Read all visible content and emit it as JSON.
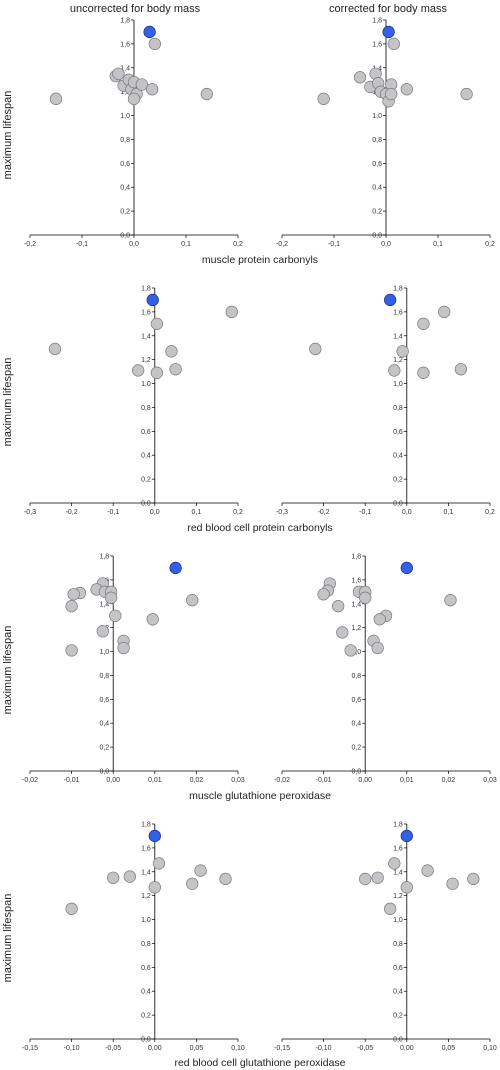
{
  "column_titles": [
    "uncorrected for body mass",
    "corrected for body mass"
  ],
  "row_ylabel": "maximum lifespan",
  "row_xlabels": [
    "muscle protein carbonyls",
    "red blood cell protein carbonyls",
    "muscle glutathione peroxidase",
    "red blood cell glutathione peroxidase"
  ],
  "colors": {
    "point_fill": "#c4c4c8",
    "point_stroke": "#777777",
    "highlight_fill": "#3460e8",
    "highlight_stroke": "#1a2a80"
  },
  "chart_data": [
    {
      "type": "scatter",
      "panel": "row1-uncorrected",
      "xlabel": "muscle protein carbonyls",
      "ylabel": "maximum lifespan",
      "xlim": [
        -0.2,
        0.2
      ],
      "ylim": [
        0,
        1.8
      ],
      "xticks": [
        -0.2,
        -0.1,
        0,
        0.1,
        0.2
      ],
      "xtick_labels": [
        "-0,2",
        "-0,1",
        "0,0",
        "0,1",
        "0,2"
      ],
      "yticks": [
        0,
        0.2,
        0.4,
        0.6,
        0.8,
        1.0,
        1.2,
        1.4,
        1.6,
        1.8
      ],
      "ytick_labels": [
        "0,0",
        "0,2",
        "0,4",
        "0,6",
        "0,8",
        "1,0",
        "1,2",
        "1,4",
        "1,6",
        "1,8"
      ],
      "points": [
        {
          "x": 0.03,
          "y": 1.7,
          "highlight": true
        },
        {
          "x": 0.04,
          "y": 1.6
        },
        {
          "x": -0.15,
          "y": 1.14
        },
        {
          "x": -0.035,
          "y": 1.33
        },
        {
          "x": -0.03,
          "y": 1.35
        },
        {
          "x": -0.02,
          "y": 1.25
        },
        {
          "x": -0.01,
          "y": 1.3
        },
        {
          "x": -0.005,
          "y": 1.22
        },
        {
          "x": 0.0,
          "y": 1.28
        },
        {
          "x": 0.005,
          "y": 1.18
        },
        {
          "x": 0.0,
          "y": 1.14
        },
        {
          "x": 0.015,
          "y": 1.26
        },
        {
          "x": 0.035,
          "y": 1.22
        },
        {
          "x": 0.14,
          "y": 1.18
        }
      ]
    },
    {
      "type": "scatter",
      "panel": "row1-corrected",
      "xlabel": "muscle protein carbonyls",
      "ylabel": "maximum lifespan",
      "xlim": [
        -0.2,
        0.2
      ],
      "ylim": [
        0,
        1.8
      ],
      "xticks": [
        -0.2,
        -0.1,
        0,
        0.1,
        0.2
      ],
      "xtick_labels": [
        "-0,2",
        "-0,1",
        "0,0",
        "0,1",
        "0,2"
      ],
      "yticks": [
        0,
        0.2,
        0.4,
        0.6,
        0.8,
        1.0,
        1.2,
        1.4,
        1.6,
        1.8
      ],
      "ytick_labels": [
        "0,0",
        "0,2",
        "0,4",
        "0,6",
        "0,8",
        "1,0",
        "1,2",
        "1,4",
        "1,6",
        "1,8"
      ],
      "points": [
        {
          "x": 0.005,
          "y": 1.7,
          "highlight": true
        },
        {
          "x": 0.015,
          "y": 1.6
        },
        {
          "x": -0.12,
          "y": 1.14
        },
        {
          "x": -0.05,
          "y": 1.32
        },
        {
          "x": -0.03,
          "y": 1.24
        },
        {
          "x": -0.02,
          "y": 1.35
        },
        {
          "x": -0.015,
          "y": 1.27
        },
        {
          "x": -0.01,
          "y": 1.2
        },
        {
          "x": 0.0,
          "y": 1.18
        },
        {
          "x": 0.005,
          "y": 1.12
        },
        {
          "x": 0.01,
          "y": 1.26
        },
        {
          "x": 0.01,
          "y": 1.18
        },
        {
          "x": 0.04,
          "y": 1.22
        },
        {
          "x": 0.155,
          "y": 1.18
        }
      ]
    },
    {
      "type": "scatter",
      "panel": "row2-uncorrected",
      "xlabel": "red blood cell protein carbonyls",
      "ylabel": "maximum lifespan",
      "xlim": [
        -0.3,
        0.2
      ],
      "ylim": [
        0,
        1.8
      ],
      "xticks": [
        -0.3,
        -0.2,
        -0.1,
        0,
        0.1,
        0.2
      ],
      "xtick_labels": [
        "-0,3",
        "-0,2",
        "-0,1",
        "0,0",
        "0,1",
        "0,2"
      ],
      "yticks": [
        0,
        0.2,
        0.4,
        0.6,
        0.8,
        1.0,
        1.2,
        1.4,
        1.6,
        1.8
      ],
      "ytick_labels": [
        "0,0",
        "0,2",
        "0,4",
        "0,6",
        "0,8",
        "1,0",
        "1,2",
        "1,4",
        "1,6",
        "1,8"
      ],
      "points": [
        {
          "x": -0.005,
          "y": 1.7,
          "highlight": true
        },
        {
          "x": 0.185,
          "y": 1.6
        },
        {
          "x": 0.005,
          "y": 1.5
        },
        {
          "x": -0.24,
          "y": 1.29
        },
        {
          "x": 0.04,
          "y": 1.27
        },
        {
          "x": -0.04,
          "y": 1.11
        },
        {
          "x": 0.005,
          "y": 1.09
        },
        {
          "x": 0.05,
          "y": 1.12
        }
      ]
    },
    {
      "type": "scatter",
      "panel": "row2-corrected",
      "xlabel": "red blood cell protein carbonyls",
      "ylabel": "maximum lifespan",
      "xlim": [
        -0.3,
        0.2
      ],
      "ylim": [
        0,
        1.8
      ],
      "xticks": [
        -0.3,
        -0.2,
        -0.1,
        0,
        0.1,
        0.2
      ],
      "xtick_labels": [
        "-0,3",
        "-0,2",
        "-0,1",
        "0,0",
        "0,1",
        "0,2"
      ],
      "yticks": [
        0,
        0.2,
        0.4,
        0.6,
        0.8,
        1.0,
        1.2,
        1.4,
        1.6,
        1.8
      ],
      "ytick_labels": [
        "0,0",
        "0,2",
        "0,4",
        "0,6",
        "0,8",
        "1,0",
        "1,2",
        "1,4",
        "1,6",
        "1,8"
      ],
      "points": [
        {
          "x": -0.04,
          "y": 1.7,
          "highlight": true
        },
        {
          "x": 0.09,
          "y": 1.6
        },
        {
          "x": 0.04,
          "y": 1.5
        },
        {
          "x": -0.22,
          "y": 1.29
        },
        {
          "x": -0.01,
          "y": 1.27
        },
        {
          "x": -0.03,
          "y": 1.11
        },
        {
          "x": 0.04,
          "y": 1.09
        },
        {
          "x": 0.13,
          "y": 1.12
        }
      ]
    },
    {
      "type": "scatter",
      "panel": "row3-uncorrected",
      "xlabel": "muscle glutathione peroxidase",
      "ylabel": "maximum lifespan",
      "xlim": [
        -0.02,
        0.03
      ],
      "ylim": [
        0,
        1.8
      ],
      "xticks": [
        -0.02,
        -0.01,
        0,
        0.01,
        0.02,
        0.03
      ],
      "xtick_labels": [
        "-0,02",
        "-0,01",
        "0,00",
        "0,01",
        "0,02",
        "0,03"
      ],
      "yticks": [
        0,
        0.2,
        0.4,
        0.6,
        0.8,
        1.0,
        1.2,
        1.4,
        1.6,
        1.8
      ],
      "ytick_labels": [
        "0,0",
        "0,2",
        "0,4",
        "0,6",
        "0,8",
        "1,0",
        "1,2",
        "1,4",
        "1,6",
        "1,8"
      ],
      "points": [
        {
          "x": 0.015,
          "y": 1.7,
          "highlight": true
        },
        {
          "x": -0.0025,
          "y": 1.57
        },
        {
          "x": -0.004,
          "y": 1.52
        },
        {
          "x": -0.008,
          "y": 1.49
        },
        {
          "x": -0.0095,
          "y": 1.48
        },
        {
          "x": -0.002,
          "y": 1.5
        },
        {
          "x": -0.0005,
          "y": 1.5
        },
        {
          "x": -0.0005,
          "y": 1.45
        },
        {
          "x": -0.01,
          "y": 1.38
        },
        {
          "x": 0.019,
          "y": 1.43
        },
        {
          "x": 0.0005,
          "y": 1.3
        },
        {
          "x": 0.0095,
          "y": 1.27
        },
        {
          "x": -0.0025,
          "y": 1.17
        },
        {
          "x": 0.0025,
          "y": 1.09
        },
        {
          "x": 0.0025,
          "y": 1.03
        },
        {
          "x": -0.01,
          "y": 1.01
        }
      ]
    },
    {
      "type": "scatter",
      "panel": "row3-corrected",
      "xlabel": "muscle glutathione peroxidase",
      "ylabel": "maximum lifespan",
      "xlim": [
        -0.02,
        0.03
      ],
      "ylim": [
        0,
        1.8
      ],
      "xticks": [
        -0.02,
        -0.01,
        0,
        0.01,
        0.02,
        0.03
      ],
      "xtick_labels": [
        "-0,02",
        "-0,01",
        "0,00",
        "0,01",
        "0,02",
        "0,03"
      ],
      "yticks": [
        0,
        0.2,
        0.4,
        0.6,
        0.8,
        1.0,
        1.2,
        1.4,
        1.6,
        1.8
      ],
      "ytick_labels": [
        "0,0",
        "0,2",
        "0,4",
        "0,6",
        "0,8",
        "1,0",
        "1,2",
        "1,4",
        "1,6",
        "1,8"
      ],
      "points": [
        {
          "x": 0.01,
          "y": 1.7,
          "highlight": true
        },
        {
          "x": -0.0085,
          "y": 1.57
        },
        {
          "x": -0.009,
          "y": 1.51
        },
        {
          "x": -0.01,
          "y": 1.48
        },
        {
          "x": -0.0015,
          "y": 1.5
        },
        {
          "x": 0.0,
          "y": 1.5
        },
        {
          "x": 0.0,
          "y": 1.45
        },
        {
          "x": -0.0065,
          "y": 1.38
        },
        {
          "x": 0.0205,
          "y": 1.43
        },
        {
          "x": 0.005,
          "y": 1.3
        },
        {
          "x": 0.0035,
          "y": 1.27
        },
        {
          "x": -0.0055,
          "y": 1.16
        },
        {
          "x": 0.002,
          "y": 1.09
        },
        {
          "x": 0.003,
          "y": 1.03
        },
        {
          "x": -0.0035,
          "y": 1.01
        }
      ]
    },
    {
      "type": "scatter",
      "panel": "row4-uncorrected",
      "xlabel": "red blood cell glutathione peroxidase",
      "ylabel": "maximum lifespan",
      "xlim": [
        -0.15,
        0.1
      ],
      "ylim": [
        0,
        1.8
      ],
      "xticks": [
        -0.15,
        -0.1,
        -0.05,
        0,
        0.05,
        0.1
      ],
      "xtick_labels": [
        "-0,15",
        "-0,10",
        "-0,05",
        "0,00",
        "0,05",
        "0,10"
      ],
      "yticks": [
        0,
        0.2,
        0.4,
        0.6,
        0.8,
        1.0,
        1.2,
        1.4,
        1.6,
        1.8
      ],
      "ytick_labels": [
        "0,0",
        "0,2",
        "0,4",
        "0,6",
        "0,8",
        "1,0",
        "1,2",
        "1,4",
        "1,6",
        "1,8"
      ],
      "points": [
        {
          "x": 0.0,
          "y": 1.7,
          "highlight": true
        },
        {
          "x": 0.005,
          "y": 1.47
        },
        {
          "x": 0.055,
          "y": 1.41
        },
        {
          "x": -0.03,
          "y": 1.36
        },
        {
          "x": -0.05,
          "y": 1.35
        },
        {
          "x": 0.085,
          "y": 1.34
        },
        {
          "x": 0.045,
          "y": 1.3
        },
        {
          "x": 0.0,
          "y": 1.27
        },
        {
          "x": -0.1,
          "y": 1.09
        }
      ]
    },
    {
      "type": "scatter",
      "panel": "row4-corrected",
      "xlabel": "red blood cell glutathione peroxidase",
      "ylabel": "maximum lifespan",
      "xlim": [
        -0.15,
        0.1
      ],
      "ylim": [
        0,
        1.8
      ],
      "xticks": [
        -0.15,
        -0.1,
        -0.05,
        0,
        0.05,
        0.1
      ],
      "xtick_labels": [
        "-0,15",
        "-0,10",
        "-0,05",
        "0,00",
        "0,05",
        "0,10"
      ],
      "yticks": [
        0,
        0.2,
        0.4,
        0.6,
        0.8,
        1.0,
        1.2,
        1.4,
        1.6,
        1.8
      ],
      "ytick_labels": [
        "0,0",
        "0,2",
        "0,4",
        "0,6",
        "0,8",
        "1,0",
        "1,2",
        "1,4",
        "1,6",
        "1,8"
      ],
      "points": [
        {
          "x": 0.0,
          "y": 1.7,
          "highlight": true
        },
        {
          "x": -0.015,
          "y": 1.47
        },
        {
          "x": 0.025,
          "y": 1.41
        },
        {
          "x": -0.05,
          "y": 1.34
        },
        {
          "x": -0.035,
          "y": 1.35
        },
        {
          "x": 0.08,
          "y": 1.34
        },
        {
          "x": 0.055,
          "y": 1.3
        },
        {
          "x": 0.0,
          "y": 1.27
        },
        {
          "x": -0.02,
          "y": 1.09
        }
      ]
    }
  ]
}
